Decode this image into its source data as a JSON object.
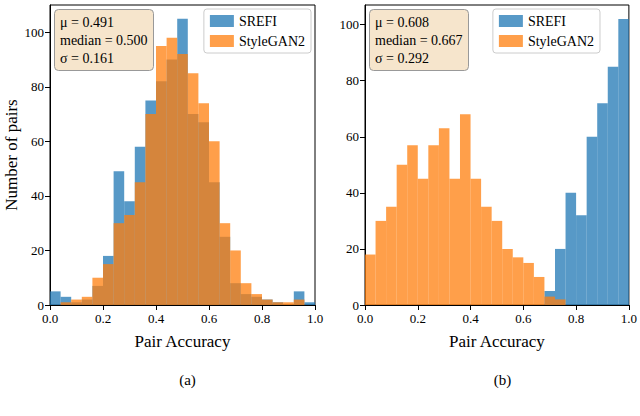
{
  "chart_data": [
    {
      "type": "histogram",
      "title": "(a)",
      "xlabel": "Pair Accuracy",
      "ylabel": "Number of pairs",
      "xlim": [
        0,
        1
      ],
      "xticks": [
        {
          "value": 0,
          "label": "0.0"
        },
        0.2,
        0.4,
        0.6,
        0.8,
        {
          "value": 1,
          "label": "1.0"
        }
      ],
      "ylim": [
        0,
        110
      ],
      "yticks": [
        0,
        20,
        40,
        60,
        80,
        100
      ],
      "bins": [
        0,
        0.04,
        0.08,
        0.12,
        0.16,
        0.2,
        0.24,
        0.28,
        0.32,
        0.36,
        0.4,
        0.44,
        0.48,
        0.52,
        0.56,
        0.6,
        0.64,
        0.68,
        0.72,
        0.76,
        0.8,
        0.84,
        0.88,
        0.92,
        0.96,
        1
      ],
      "series": [
        {
          "name": "SREFI",
          "color": "#1f77b4",
          "values": [
            5,
            3,
            1,
            2,
            7,
            18,
            49,
            38,
            58,
            75,
            82,
            90,
            105,
            70,
            67,
            45,
            25,
            8,
            4,
            3,
            2,
            1,
            0,
            5,
            1
          ]
        },
        {
          "name": "StyleGAN2",
          "color": "#ff7f0e",
          "values": [
            0,
            1,
            2,
            3,
            10,
            15,
            30,
            33,
            45,
            70,
            95,
            98,
            92,
            85,
            74,
            60,
            30,
            20,
            8,
            4,
            2,
            1,
            1,
            2,
            0
          ]
        }
      ],
      "legend": "upper right",
      "annotation": [
        "μ = 0.491",
        "median = 0.500",
        "σ = 0.161"
      ]
    },
    {
      "type": "histogram",
      "title": "(b)",
      "xlabel": "Pair Accuracy",
      "xlim": [
        0,
        1
      ],
      "xticks": [
        {
          "value": 0,
          "label": "0.0"
        },
        0.2,
        0.4,
        0.6,
        0.8,
        {
          "value": 1,
          "label": "1.0"
        }
      ],
      "ylim": [
        0,
        107
      ],
      "yticks": [
        0,
        20,
        40,
        60,
        80,
        100
      ],
      "bins": [
        0,
        0.04,
        0.08,
        0.12,
        0.16,
        0.2,
        0.24,
        0.28,
        0.32,
        0.36,
        0.4,
        0.44,
        0.48,
        0.52,
        0.56,
        0.6,
        0.64,
        0.68,
        0.72,
        0.76,
        0.8,
        0.84,
        0.88,
        0.92,
        0.96,
        1
      ],
      "series": [
        {
          "name": "SREFI",
          "color": "#1f77b4",
          "values": [
            0,
            0,
            0,
            0,
            0,
            0,
            0,
            0,
            0,
            0,
            0,
            0,
            0,
            0,
            0,
            0,
            0,
            5,
            20,
            40,
            32,
            60,
            72,
            85,
            102
          ]
        },
        {
          "name": "StyleGAN2",
          "color": "#ff7f0e",
          "values": [
            18,
            30,
            35,
            50,
            57,
            45,
            57,
            63,
            45,
            68,
            45,
            35,
            30,
            20,
            17,
            15,
            10,
            3,
            2,
            0,
            0,
            0,
            0,
            0,
            0
          ]
        }
      ],
      "legend": "upper right",
      "annotation": [
        "μ = 0.608",
        "median = 0.667",
        "σ = 0.292"
      ]
    }
  ]
}
